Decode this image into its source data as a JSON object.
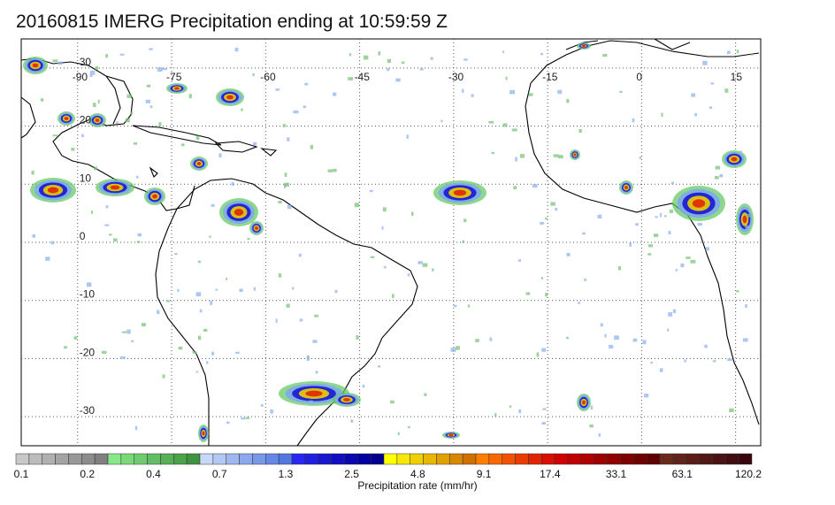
{
  "title": "20160815 IMERG Precipitation ending at 10:59:59 Z",
  "map": {
    "lon_labels": [
      "-90",
      "-75",
      "-60",
      "-45",
      "-30",
      "-15",
      "0",
      "15"
    ],
    "lat_labels": [
      "30",
      "20",
      "10",
      "0",
      "-10",
      "-20",
      "-30"
    ],
    "lon_values": [
      -90,
      -75,
      -60,
      -45,
      -30,
      -15,
      0,
      15
    ],
    "lat_values": [
      30,
      20,
      10,
      0,
      -10,
      -20,
      -30
    ],
    "lon_range": [
      -99,
      19
    ],
    "lat_range": [
      35,
      -35
    ],
    "grid": "dotted"
  },
  "colorbar": {
    "label": "Precipitation rate (mm/hr)",
    "tick_labels": [
      "0.1",
      "0.2",
      "0.4",
      "0.7",
      "1.3",
      "2.5",
      "4.8",
      "9.1",
      "17.4",
      "33.1",
      "63.1",
      "120.2"
    ],
    "colors": [
      "#c8c8c8",
      "#bcbcbc",
      "#b0b0b0",
      "#a4a4a4",
      "#989898",
      "#8c8c8c",
      "#808080",
      "#86e886",
      "#7ada7a",
      "#6ecc6e",
      "#62be62",
      "#56b056",
      "#4aa24a",
      "#3e943e",
      "#c8d8f8",
      "#b4c8f4",
      "#a0b8f0",
      "#8ca8ec",
      "#7898e8",
      "#6488e4",
      "#5078e0",
      "#2828f0",
      "#2020e0",
      "#1818d0",
      "#1010c0",
      "#0808b0",
      "#0000a0",
      "#000090",
      "#ffff00",
      "#f8e800",
      "#f0d000",
      "#e8b800",
      "#e0a000",
      "#d88800",
      "#d07000",
      "#ff7e00",
      "#f86800",
      "#f05200",
      "#e83c00",
      "#e02600",
      "#d81000",
      "#d00000",
      "#c00000",
      "#b00000",
      "#a00000",
      "#900000",
      "#800000",
      "#700000",
      "#600000",
      "#6a2a1a",
      "#622418",
      "#5a1e16",
      "#521814",
      "#4a1212",
      "#420c10",
      "#3a060e"
    ]
  }
}
